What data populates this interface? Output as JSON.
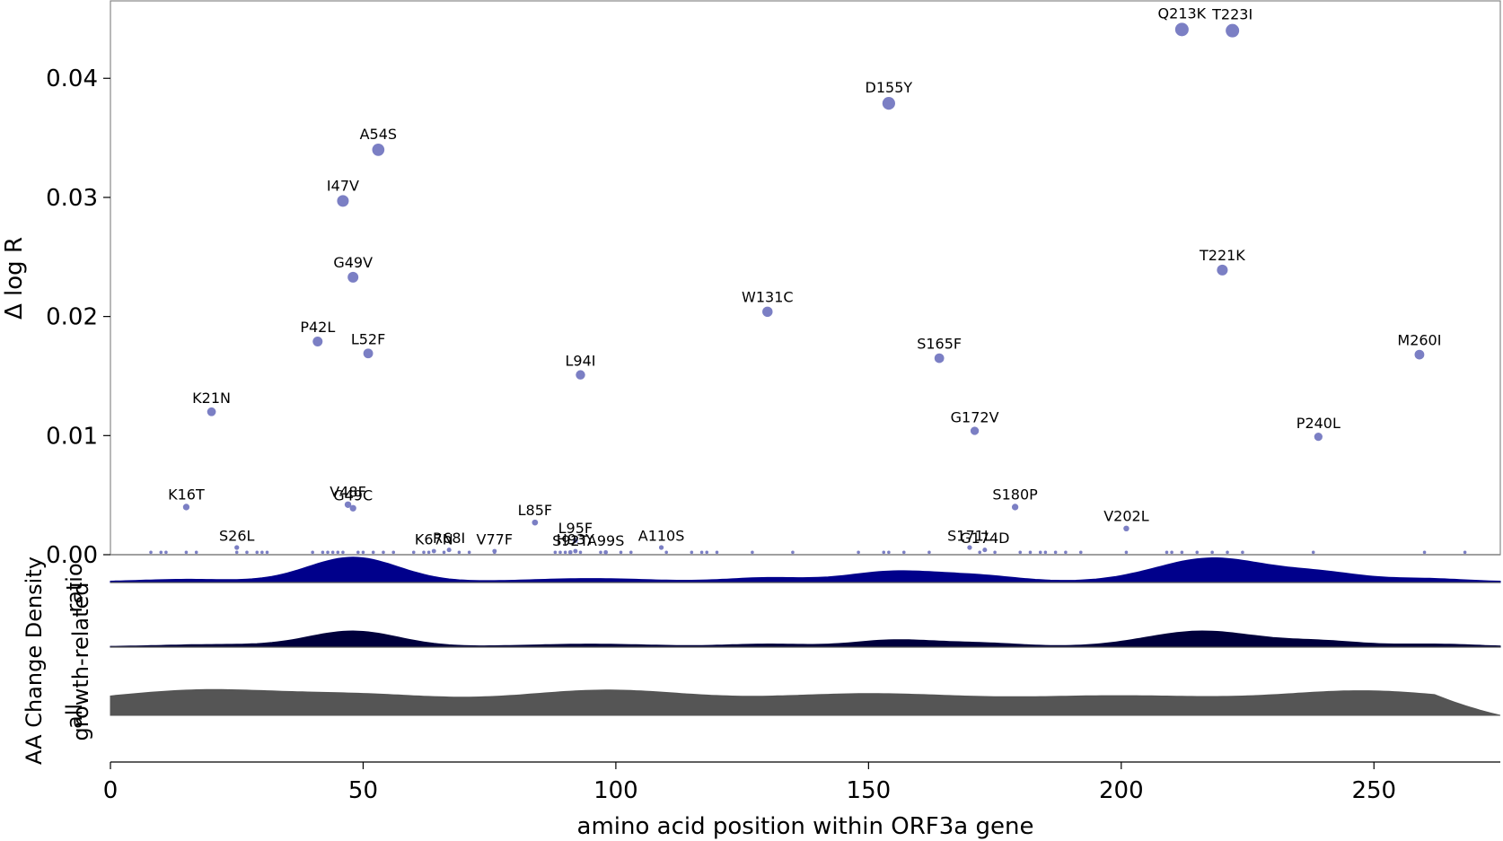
{
  "chart_data": {
    "type": "scatter",
    "xlabel": "amino acid position within ORF3a gene",
    "ylabel": "Δ log R",
    "xlim": [
      0,
      275
    ],
    "ylim": [
      0,
      0.0465
    ],
    "x_ticks": [
      0,
      50,
      100,
      150,
      200,
      250
    ],
    "y_ticks": [
      0.0,
      0.01,
      0.02,
      0.03,
      0.04
    ],
    "y_tick_labels": [
      "0.00",
      "0.01",
      "0.02",
      "0.03",
      "0.04"
    ],
    "point_color": "#7b7fc4",
    "labeled_points": [
      {
        "label": "Q213K",
        "x": 212,
        "y": 0.0441
      },
      {
        "label": "T223I",
        "x": 222,
        "y": 0.044
      },
      {
        "label": "D155Y",
        "x": 154,
        "y": 0.0379
      },
      {
        "label": "A54S",
        "x": 53,
        "y": 0.034
      },
      {
        "label": "I47V",
        "x": 46,
        "y": 0.0297
      },
      {
        "label": "T221K",
        "x": 220,
        "y": 0.0239
      },
      {
        "label": "G49V",
        "x": 48,
        "y": 0.0233
      },
      {
        "label": "W131C",
        "x": 130,
        "y": 0.0204
      },
      {
        "label": "P42L",
        "x": 41,
        "y": 0.0179
      },
      {
        "label": "L52F",
        "x": 51,
        "y": 0.0169
      },
      {
        "label": "M260I",
        "x": 259,
        "y": 0.0168
      },
      {
        "label": "S165F",
        "x": 164,
        "y": 0.0165
      },
      {
        "label": "L94I",
        "x": 93,
        "y": 0.0151
      },
      {
        "label": "K21N",
        "x": 20,
        "y": 0.012
      },
      {
        "label": "G172V",
        "x": 171,
        "y": 0.0104
      },
      {
        "label": "P240L",
        "x": 239,
        "y": 0.0099
      },
      {
        "label": "K16T",
        "x": 15,
        "y": 0.004
      },
      {
        "label": "V48F",
        "x": 47,
        "y": 0.0042
      },
      {
        "label": "G49C",
        "x": 48,
        "y": 0.0039
      },
      {
        "label": "S180P",
        "x": 179,
        "y": 0.004
      },
      {
        "label": "L85F",
        "x": 84,
        "y": 0.0027
      },
      {
        "label": "V202L",
        "x": 201,
        "y": 0.0022
      },
      {
        "label": "L95F",
        "x": 92,
        "y": 0.0012
      },
      {
        "label": "S26L",
        "x": 25,
        "y": 0.0006
      },
      {
        "label": "A110S",
        "x": 109,
        "y": 0.0006
      },
      {
        "label": "S171L",
        "x": 170,
        "y": 0.0006
      },
      {
        "label": "G174D",
        "x": 173,
        "y": 0.0004
      },
      {
        "label": "K67N",
        "x": 64,
        "y": 0.0003
      },
      {
        "label": "R68I",
        "x": 67,
        "y": 0.0004
      },
      {
        "label": "V77F",
        "x": 76,
        "y": 0.0003
      },
      {
        "label": "S92T",
        "x": 91,
        "y": 0.0002
      },
      {
        "label": "H93Y",
        "x": 92,
        "y": 0.0003
      },
      {
        "label": "A99S",
        "x": 98,
        "y": 0.0002
      }
    ],
    "baseline_points_x": [
      8,
      10,
      11,
      15,
      17,
      25,
      27,
      29,
      30,
      31,
      40,
      42,
      43,
      44,
      45,
      46,
      49,
      50,
      52,
      54,
      56,
      60,
      62,
      63,
      66,
      69,
      71,
      76,
      88,
      89,
      90,
      91,
      93,
      97,
      98,
      101,
      103,
      110,
      115,
      117,
      118,
      120,
      127,
      135,
      148,
      153,
      154,
      157,
      162,
      172,
      175,
      180,
      182,
      184,
      185,
      187,
      189,
      192,
      201,
      209,
      210,
      212,
      215,
      218,
      221,
      224,
      238,
      260,
      268
    ],
    "density_panels": [
      {
        "name": "ratio",
        "color": "#00008b"
      },
      {
        "name": "growth-related",
        "color": "#00003c"
      },
      {
        "name": "all",
        "color": "#555555"
      }
    ],
    "density_ylabel": "AA Change Density"
  }
}
